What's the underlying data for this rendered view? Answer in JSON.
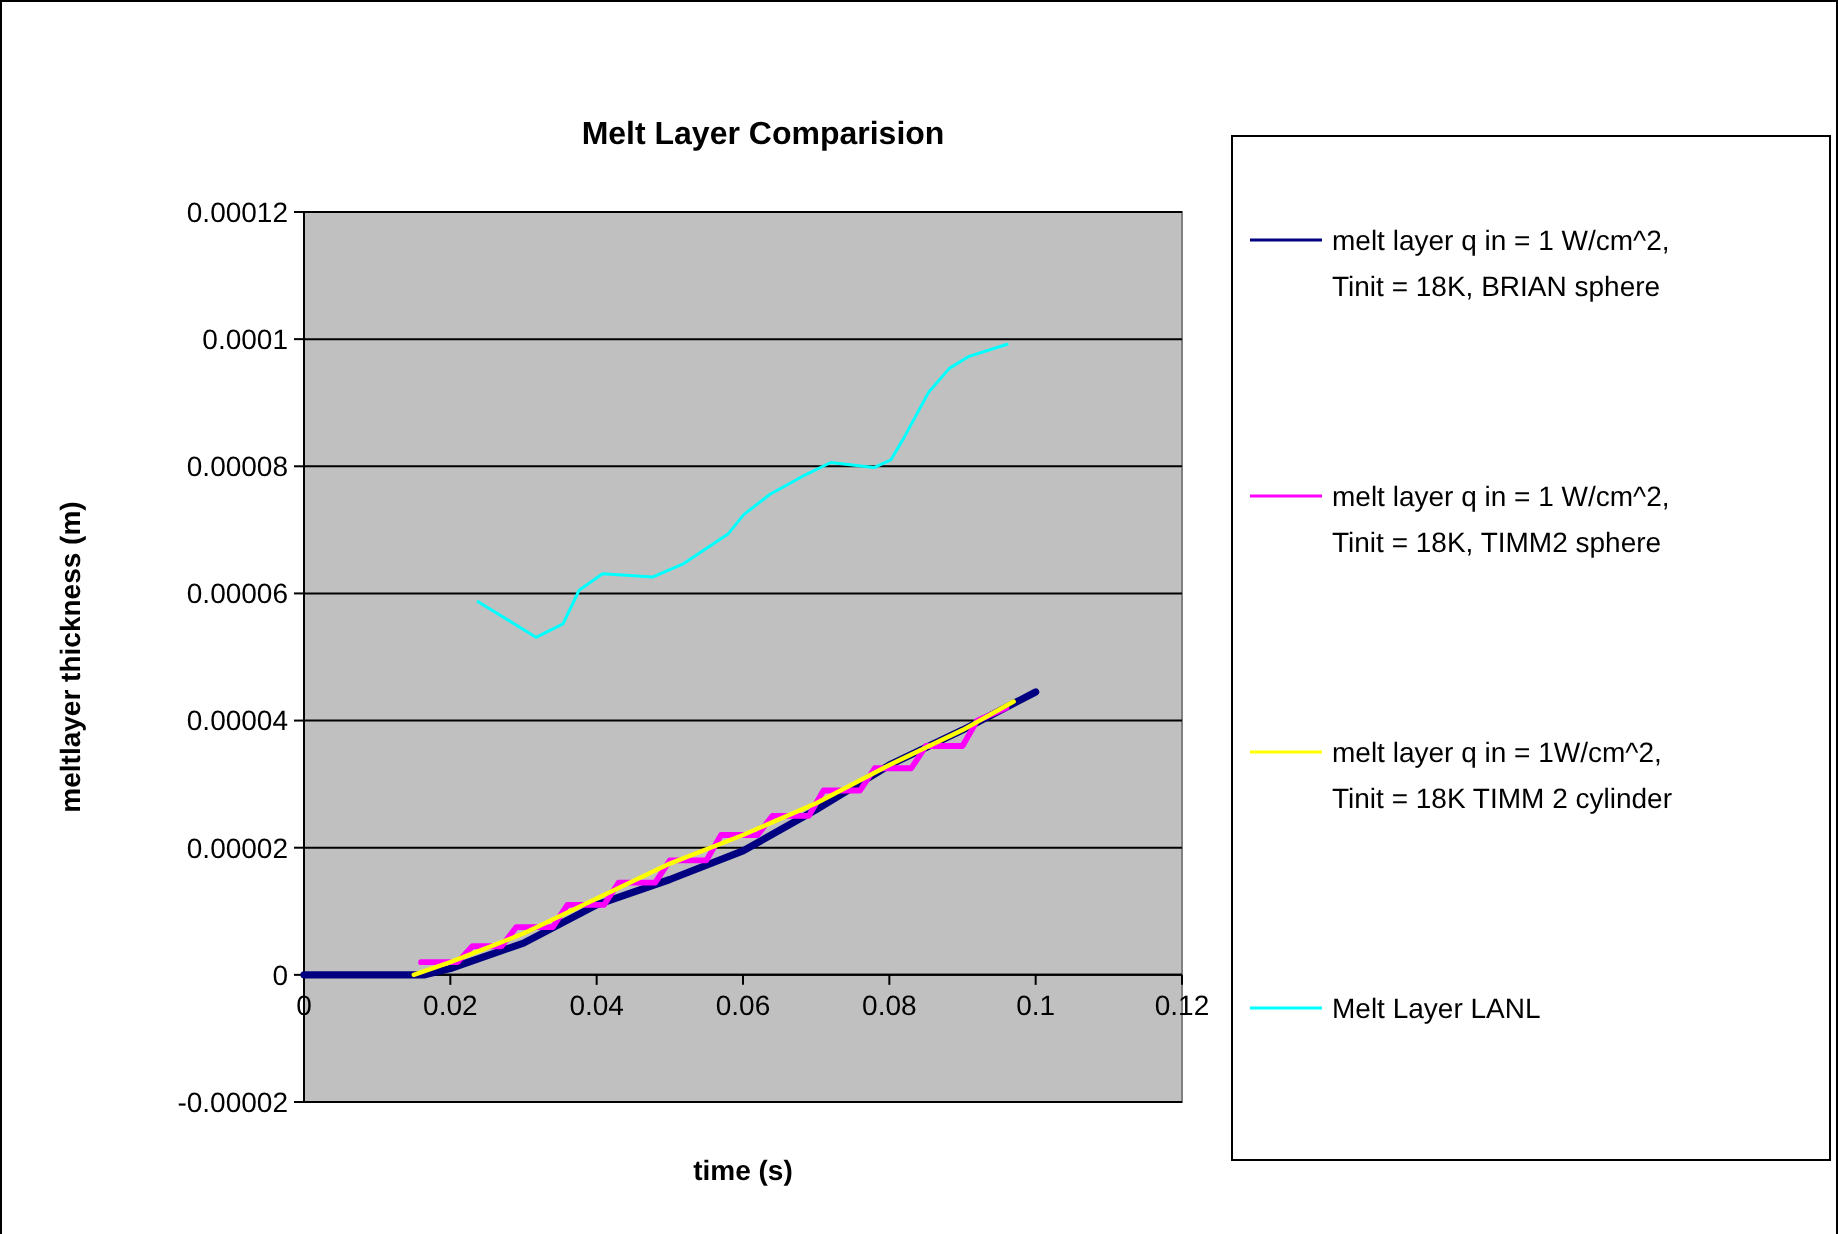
{
  "chart_data": {
    "type": "line",
    "title": "Melt Layer Comparision",
    "xlabel": "time (s)",
    "ylabel": "meltlayer thickness (m)",
    "xlim": [
      0,
      0.12
    ],
    "xticks": [
      0,
      0.02,
      0.04,
      0.06,
      0.08,
      0.1,
      0.12
    ],
    "ylim": [
      -2e-05,
      0.00012
    ],
    "yticks": [
      {
        "value": -2e-05,
        "label": "-0.00002"
      },
      0,
      {
        "value": 2e-05,
        "label": "0.00002"
      },
      {
        "value": 4e-05,
        "label": "0.00004"
      },
      {
        "value": 6e-05,
        "label": "0.00006"
      },
      {
        "value": 8e-05,
        "label": "0.00008"
      },
      {
        "value": 0.0001,
        "label": "0.0001"
      },
      {
        "value": 0.00012,
        "label": "0.00012"
      }
    ],
    "grid": "y",
    "legend": "right",
    "line_style": "solid",
    "marker": "none",
    "series": [
      {
        "name": "melt layer q in = 1 W/cm^2, Tinit = 18K, BRIAN sphere",
        "color": "#000080",
        "x": [
          0,
          0.0165,
          0.02,
          0.03,
          0.04,
          0.05,
          0.06,
          0.07,
          0.08,
          0.09,
          0.1
        ],
        "values": [
          0,
          0,
          1e-06,
          5e-06,
          1.1e-05,
          1.5e-05,
          1.95e-05,
          2.6e-05,
          3.3e-05,
          3.85e-05,
          4.45e-05
        ]
      },
      {
        "name": "melt layer q in = 1 W/cm^2, Tinit = 18K, TIMM2 sphere",
        "color": "#ff00ff",
        "x": [
          0.016,
          0.021,
          0.023,
          0.027,
          0.029,
          0.034,
          0.036,
          0.041,
          0.043,
          0.048,
          0.05,
          0.055,
          0.057,
          0.062,
          0.064,
          0.069,
          0.071,
          0.076,
          0.078,
          0.083,
          0.085,
          0.09,
          0.092,
          0.096
        ],
        "values": [
          2e-06,
          2e-06,
          4.5e-06,
          4.5e-06,
          7.5e-06,
          7.5e-06,
          1.1e-05,
          1.1e-05,
          1.45e-05,
          1.45e-05,
          1.8e-05,
          1.8e-05,
          2.2e-05,
          2.2e-05,
          2.5e-05,
          2.5e-05,
          2.9e-05,
          2.9e-05,
          3.25e-05,
          3.25e-05,
          3.6e-05,
          3.6e-05,
          4e-05,
          4.2e-05
        ]
      },
      {
        "name": "melt layer q in = 1W/cm^2, Tinit = 18K TIMM 2 cylinder",
        "color": "#ffff00",
        "x": [
          0.015,
          0.02,
          0.03,
          0.04,
          0.05,
          0.06,
          0.07,
          0.08,
          0.09,
          0.097
        ],
        "values": [
          0,
          2e-06,
          6.5e-06,
          1.2e-05,
          1.75e-05,
          2.2e-05,
          2.7e-05,
          3.3e-05,
          3.85e-05,
          4.3e-05
        ]
      },
      {
        "name": "Melt Layer LANL",
        "color": "#00ffff",
        "x": [
          0.0238,
          0.0317,
          0.0354,
          0.0376,
          0.0408,
          0.0477,
          0.0519,
          0.058,
          0.0601,
          0.0637,
          0.0681,
          0.072,
          0.0779,
          0.0802,
          0.0821,
          0.0854,
          0.0882,
          0.0909,
          0.0961
        ],
        "values": [
          5.87e-05,
          5.31e-05,
          5.52e-05,
          6.05e-05,
          6.31e-05,
          6.26e-05,
          6.47e-05,
          6.94e-05,
          7.24e-05,
          7.56e-05,
          7.84e-05,
          8.06e-05,
          7.98e-05,
          8.1e-05,
          8.47e-05,
          9.17e-05,
          9.54e-05,
          9.73e-05,
          9.92e-05
        ]
      }
    ]
  }
}
